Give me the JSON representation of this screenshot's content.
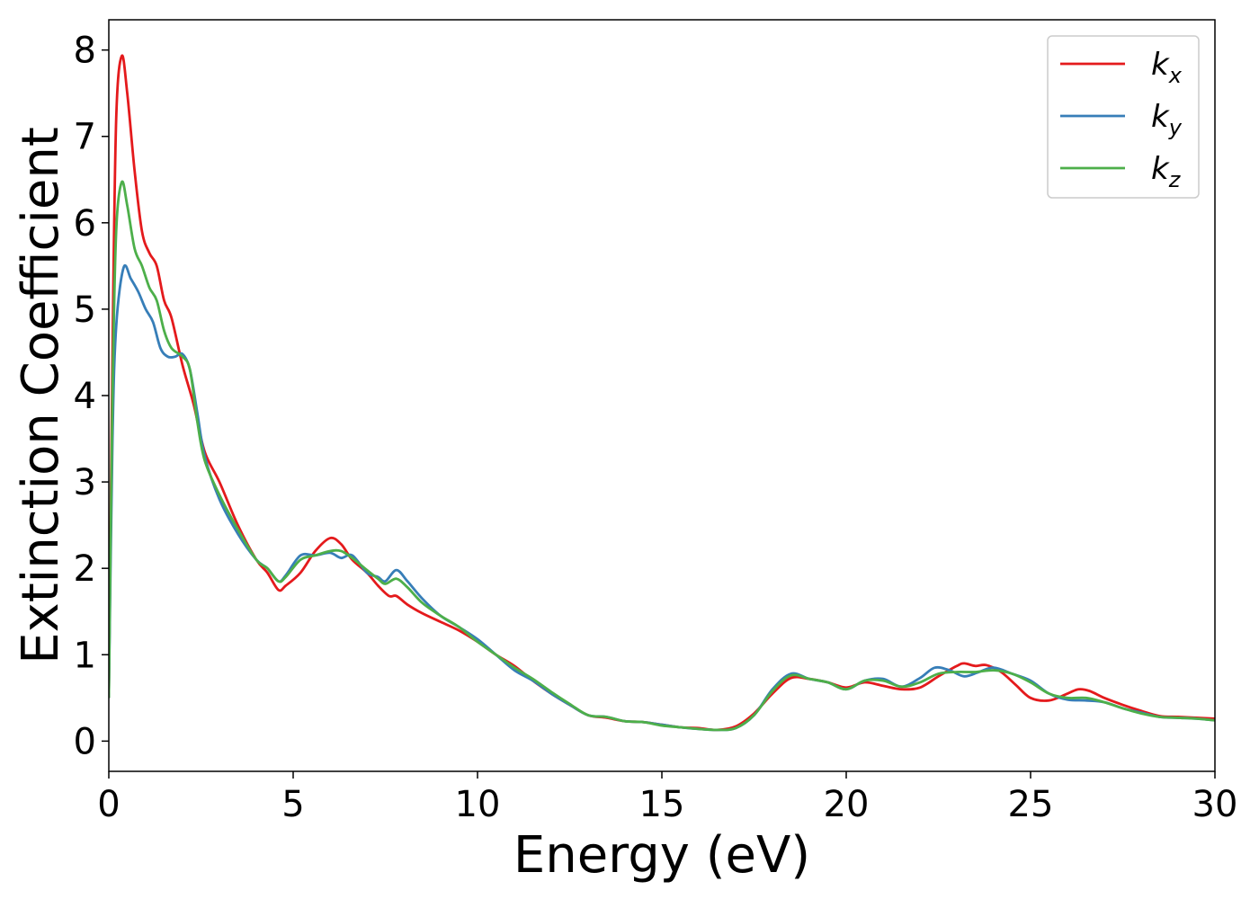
{
  "chart_data": {
    "type": "line",
    "xlabel": "Energy (eV)",
    "ylabel": "Extinction Coefficient",
    "xlim": [
      0,
      30
    ],
    "ylim": [
      -0.35,
      8.35
    ],
    "xticks": [
      0,
      5,
      10,
      15,
      20,
      25,
      30
    ],
    "yticks": [
      0,
      1,
      2,
      3,
      4,
      5,
      6,
      7,
      8
    ],
    "grid": false,
    "legend_position": "top-right",
    "series": [
      {
        "name": "k",
        "subscript": "x",
        "color": "#e41a1c",
        "x": [
          0,
          0.1,
          0.2,
          0.35,
          0.5,
          0.7,
          0.9,
          1.1,
          1.3,
          1.5,
          1.7,
          2.0,
          2.3,
          2.6,
          3.0,
          3.5,
          4.0,
          4.3,
          4.6,
          4.8,
          5.2,
          5.6,
          6.0,
          6.3,
          6.6,
          7.0,
          7.3,
          7.6,
          7.8,
          8.1,
          8.5,
          9.0,
          9.5,
          10.0,
          10.5,
          11.0,
          11.5,
          12.0,
          12.5,
          13.0,
          13.5,
          14.0,
          14.5,
          15.0,
          15.5,
          16.0,
          16.5,
          17.0,
          17.5,
          18.0,
          18.5,
          19.0,
          19.5,
          20.0,
          20.5,
          21.0,
          21.5,
          22.0,
          22.5,
          23.0,
          23.2,
          23.5,
          23.8,
          24.2,
          24.6,
          25.0,
          25.5,
          26.0,
          26.3,
          26.6,
          27.0,
          27.5,
          28.0,
          28.5,
          29.0,
          29.5,
          30.0
        ],
        "y": [
          0.5,
          4.5,
          7.2,
          7.93,
          7.5,
          6.6,
          5.9,
          5.65,
          5.5,
          5.1,
          4.9,
          4.35,
          3.9,
          3.35,
          3.0,
          2.5,
          2.1,
          1.95,
          1.75,
          1.8,
          1.95,
          2.2,
          2.35,
          2.28,
          2.1,
          1.95,
          1.8,
          1.68,
          1.68,
          1.58,
          1.48,
          1.38,
          1.28,
          1.15,
          1.0,
          0.87,
          0.7,
          0.55,
          0.42,
          0.3,
          0.27,
          0.23,
          0.22,
          0.19,
          0.16,
          0.15,
          0.13,
          0.17,
          0.32,
          0.55,
          0.73,
          0.72,
          0.68,
          0.62,
          0.68,
          0.64,
          0.6,
          0.62,
          0.75,
          0.87,
          0.9,
          0.87,
          0.88,
          0.8,
          0.65,
          0.5,
          0.47,
          0.55,
          0.6,
          0.58,
          0.5,
          0.42,
          0.35,
          0.29,
          0.28,
          0.27,
          0.26
        ]
      },
      {
        "name": "k",
        "subscript": "y",
        "color": "#377eb8",
        "x": [
          0,
          0.1,
          0.2,
          0.4,
          0.6,
          0.8,
          1.0,
          1.2,
          1.4,
          1.6,
          1.8,
          2.0,
          2.2,
          2.4,
          2.6,
          3.0,
          3.5,
          4.0,
          4.3,
          4.6,
          4.8,
          5.2,
          5.6,
          6.0,
          6.3,
          6.6,
          7.0,
          7.3,
          7.5,
          7.8,
          8.1,
          8.5,
          9.0,
          9.5,
          10.0,
          10.5,
          11.0,
          11.5,
          12.0,
          12.5,
          13.0,
          13.5,
          14.0,
          14.5,
          15.0,
          15.5,
          16.0,
          16.5,
          17.0,
          17.5,
          18.0,
          18.5,
          19.0,
          19.5,
          20.0,
          20.5,
          21.0,
          21.5,
          22.0,
          22.4,
          22.8,
          23.2,
          23.6,
          24.0,
          24.5,
          25.0,
          25.5,
          26.0,
          26.5,
          27.0,
          27.5,
          28.0,
          28.5,
          29.0,
          29.5,
          30.0
        ],
        "y": [
          0.5,
          3.5,
          4.8,
          5.48,
          5.35,
          5.2,
          5.0,
          4.85,
          4.55,
          4.45,
          4.45,
          4.48,
          4.3,
          3.8,
          3.3,
          2.8,
          2.4,
          2.1,
          2.0,
          1.85,
          1.92,
          2.15,
          2.15,
          2.18,
          2.12,
          2.15,
          1.95,
          1.9,
          1.85,
          1.98,
          1.85,
          1.65,
          1.45,
          1.32,
          1.18,
          1.0,
          0.82,
          0.7,
          0.55,
          0.42,
          0.3,
          0.28,
          0.23,
          0.22,
          0.19,
          0.16,
          0.14,
          0.13,
          0.15,
          0.3,
          0.6,
          0.78,
          0.72,
          0.68,
          0.6,
          0.7,
          0.72,
          0.63,
          0.73,
          0.85,
          0.82,
          0.75,
          0.8,
          0.85,
          0.78,
          0.7,
          0.55,
          0.48,
          0.47,
          0.45,
          0.38,
          0.33,
          0.28,
          0.27,
          0.26,
          0.24
        ]
      },
      {
        "name": "k",
        "subscript": "z",
        "color": "#4daf4a",
        "x": [
          0,
          0.1,
          0.2,
          0.35,
          0.5,
          0.7,
          0.9,
          1.1,
          1.3,
          1.5,
          1.7,
          2.0,
          2.2,
          2.4,
          2.6,
          3.0,
          3.5,
          4.0,
          4.3,
          4.6,
          4.8,
          5.2,
          5.6,
          6.0,
          6.3,
          6.6,
          7.0,
          7.3,
          7.5,
          7.8,
          8.1,
          8.5,
          9.0,
          9.5,
          10.0,
          10.5,
          11.0,
          11.5,
          12.0,
          12.5,
          13.0,
          13.5,
          14.0,
          14.5,
          15.0,
          15.5,
          16.0,
          16.5,
          17.0,
          17.5,
          18.0,
          18.5,
          19.0,
          19.5,
          20.0,
          20.5,
          21.0,
          21.5,
          22.0,
          22.5,
          23.0,
          23.5,
          24.0,
          24.5,
          25.0,
          25.5,
          26.0,
          26.5,
          27.0,
          27.5,
          28.0,
          28.5,
          29.0,
          29.5,
          30.0
        ],
        "y": [
          0.5,
          4.0,
          5.9,
          6.47,
          6.2,
          5.7,
          5.5,
          5.25,
          5.1,
          4.75,
          4.55,
          4.45,
          4.3,
          3.7,
          3.25,
          2.85,
          2.45,
          2.1,
          2.0,
          1.85,
          1.9,
          2.1,
          2.15,
          2.2,
          2.2,
          2.12,
          1.98,
          1.88,
          1.82,
          1.88,
          1.78,
          1.6,
          1.45,
          1.32,
          1.15,
          1.0,
          0.85,
          0.72,
          0.57,
          0.43,
          0.3,
          0.28,
          0.23,
          0.22,
          0.18,
          0.16,
          0.14,
          0.13,
          0.15,
          0.3,
          0.58,
          0.76,
          0.72,
          0.68,
          0.6,
          0.7,
          0.7,
          0.63,
          0.68,
          0.78,
          0.8,
          0.8,
          0.82,
          0.78,
          0.68,
          0.55,
          0.5,
          0.5,
          0.45,
          0.38,
          0.32,
          0.28,
          0.27,
          0.26,
          0.24
        ]
      }
    ]
  }
}
